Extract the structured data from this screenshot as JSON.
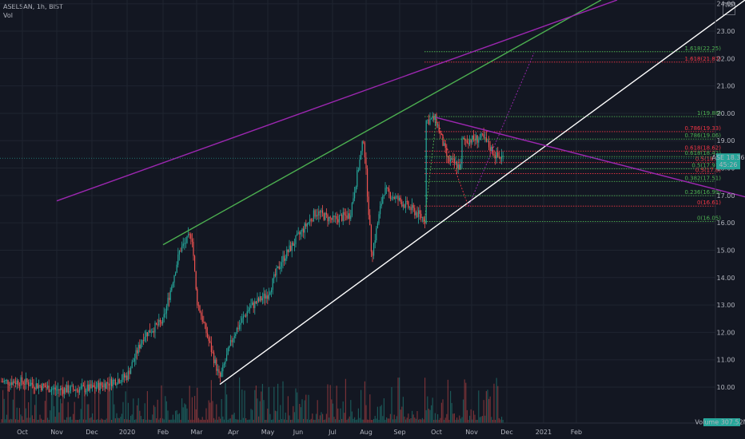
{
  "header": {
    "symbol_line": "ASELSAN, 1h, BIST",
    "indicator": "Vol",
    "currency": "TRY"
  },
  "colors": {
    "background": "#131722",
    "up": "#26a69a",
    "down": "#ef5350",
    "grid": "#1f2430",
    "upper_channel": "#4caf50",
    "lower_channel": "#ffffff",
    "purple": "#9c27b0",
    "fib_green": "#4caf50",
    "fib_red": "#f23645",
    "price_badge": "#26a69a"
  },
  "chart_data": {
    "type": "candlestick",
    "x_axis_labels": [
      "Oct",
      "Nov",
      "Dec",
      "2020",
      "Feb",
      "Mar",
      "Apr",
      "May",
      "Jun",
      "Jul",
      "Aug",
      "Sep",
      "Oct",
      "Nov",
      "Dec",
      "2021",
      "Feb"
    ],
    "y_axis_labels": [
      "10.00",
      "11.00",
      "12.00",
      "13.00",
      "14.00",
      "15.00",
      "16.00",
      "17.00",
      "18.00",
      "19.00",
      "20.00",
      "21.00",
      "22.00",
      "23.00",
      "24.00"
    ],
    "ylim": [
      9.65,
      24.05
    ],
    "grid": true,
    "price_path": [
      [
        "Oct",
        10.2
      ],
      [
        "Nov",
        9.9
      ],
      [
        "Dec",
        9.95
      ],
      [
        "2020",
        10.4
      ],
      [
        "Jan-mid",
        11.9
      ],
      [
        "Feb",
        12.4
      ],
      [
        "Feb-mid",
        15.0
      ],
      [
        "Feb-end",
        15.6
      ],
      [
        "Mar",
        13.2
      ],
      [
        "Mar-mid",
        10.3
      ],
      [
        "Apr",
        11.9
      ],
      [
        "Apr-mid",
        12.9
      ],
      [
        "May",
        13.4
      ],
      [
        "May-mid",
        14.6
      ],
      [
        "Jun",
        15.5
      ],
      [
        "Jun-mid",
        16.4
      ],
      [
        "Jul",
        16.1
      ],
      [
        "Jul-mid",
        16.3
      ],
      [
        "Aug",
        19.1
      ],
      [
        "Aug-mid",
        14.8
      ],
      [
        "Aug-end",
        17.2
      ],
      [
        "Sep",
        16.8
      ],
      [
        "Sep-mid",
        16.5
      ],
      [
        "Sep-end",
        16.1
      ],
      [
        "Oct",
        16.9
      ],
      [
        "Oct-early",
        19.8
      ],
      [
        "Oct-mid",
        18.3
      ],
      [
        "Oct-end",
        18.0
      ],
      [
        "Nov",
        16.9
      ],
      [
        "Nov-mid",
        19.1
      ],
      [
        "Nov-late",
        18.4
      ]
    ],
    "fib_levels": [
      {
        "label": "1.618(22.25)",
        "value": 22.25,
        "color": "green"
      },
      {
        "label": "1.618(21.87)",
        "value": 21.87,
        "color": "red"
      },
      {
        "label": "1(19.88)",
        "value": 19.88,
        "color": "green"
      },
      {
        "label": "0.786(19.33)",
        "value": 19.33,
        "color": "red"
      },
      {
        "label": "0.786(19.06)",
        "value": 19.06,
        "color": "green"
      },
      {
        "label": "0.618(18.62)",
        "value": 18.62,
        "color": "red"
      },
      {
        "label": "0.618(18.42)",
        "value": 18.42,
        "color": "green"
      },
      {
        "label": "0.5(18.2)",
        "value": 18.2,
        "color": "red"
      },
      {
        "label": "0.5(17.97)",
        "value": 17.97,
        "color": "green"
      },
      {
        "label": "0.5(17.8)",
        "value": 17.8,
        "color": "red"
      },
      {
        "label": "0.382(17.51)",
        "value": 17.51,
        "color": "green"
      },
      {
        "label": "0.236(16.99)",
        "value": 16.99,
        "color": "green"
      },
      {
        "label": "0(16.61)",
        "value": 16.61,
        "color": "red"
      },
      {
        "label": "0(16.05)",
        "value": 16.05,
        "color": "green"
      }
    ],
    "trendlines": [
      {
        "name": "upper channel",
        "from": [
          "Feb",
          15.2
        ],
        "to": [
          "Dec-mid",
          24.0
        ],
        "color": "green"
      },
      {
        "name": "lower channel",
        "from": [
          "Mar-mid",
          10.1
        ],
        "to": [
          "Feb-end",
          24.0
        ],
        "color": "white"
      },
      {
        "name": "descending resistance",
        "from": [
          "Oct-early",
          19.85
        ],
        "to": [
          "Feb-end",
          16.95
        ],
        "color": "purple"
      },
      {
        "name": "steep projection",
        "from": [
          "Nov",
          16.8
        ],
        "to": [
          "Dec-mid",
          24.0
        ],
        "color": "purple"
      }
    ],
    "current_price": {
      "label": "18.36",
      "badge_symbol": "ASE",
      "value": 18.36,
      "countdown": "45:26"
    },
    "volume_label": "Volume",
    "volume_value": "307.52M"
  }
}
